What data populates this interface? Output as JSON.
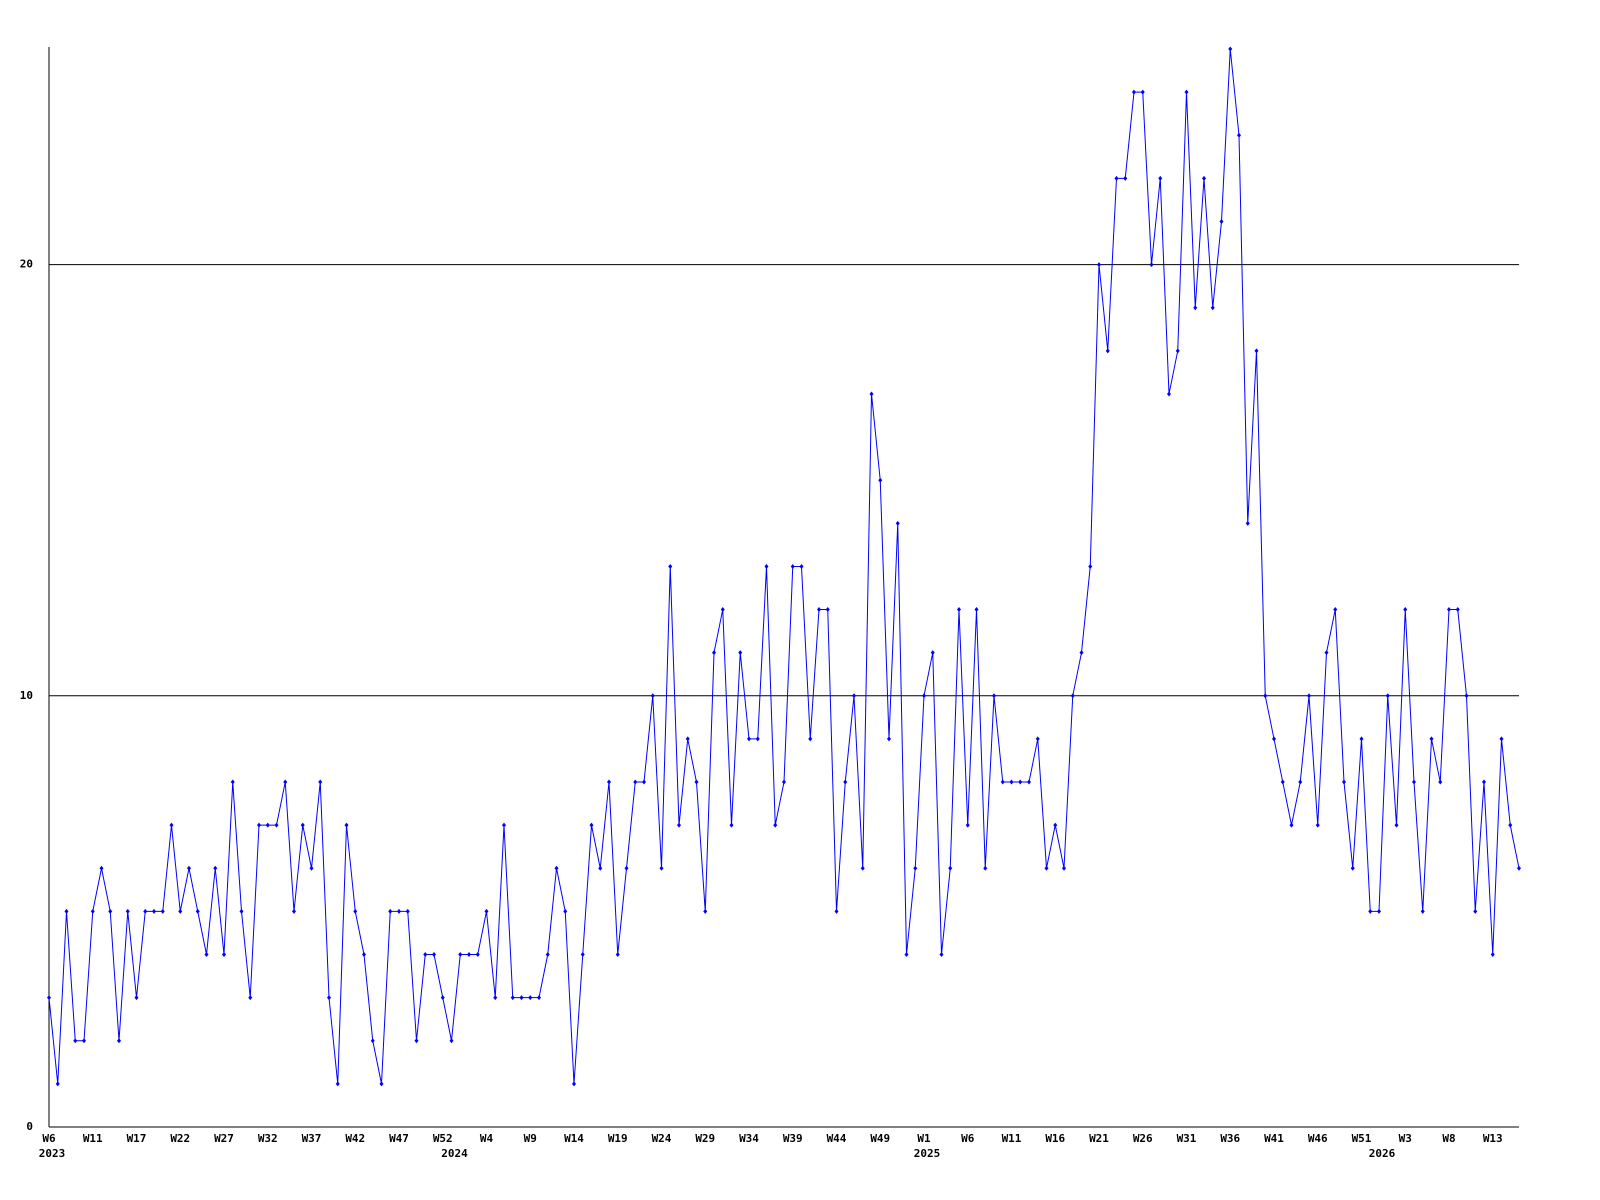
{
  "chart_data": {
    "type": "line",
    "categories": [
      "W6",
      null,
      null,
      null,
      null,
      "W11",
      null,
      null,
      null,
      null,
      "W17",
      null,
      null,
      null,
      null,
      "W22",
      null,
      null,
      null,
      null,
      "W27",
      null,
      null,
      null,
      null,
      "W32",
      null,
      null,
      null,
      null,
      "W37",
      null,
      null,
      null,
      null,
      "W42",
      null,
      null,
      null,
      null,
      "W47",
      null,
      null,
      null,
      null,
      "W52",
      null,
      null,
      null,
      null,
      "W4",
      null,
      null,
      null,
      null,
      "W9",
      null,
      null,
      null,
      null,
      "W14",
      null,
      null,
      null,
      null,
      "W19",
      null,
      null,
      null,
      null,
      "W24",
      null,
      null,
      null,
      null,
      "W29",
      null,
      null,
      null,
      null,
      "W34",
      null,
      null,
      null,
      null,
      "W39",
      null,
      null,
      null,
      null,
      "W44",
      null,
      null,
      null,
      null,
      "W49",
      null,
      null,
      null,
      null,
      "W1",
      null,
      null,
      null,
      null,
      "W6",
      null,
      null,
      null,
      null,
      "W11",
      null,
      null,
      null,
      null,
      "W16",
      null,
      null,
      null,
      null,
      "W21",
      null,
      null,
      null,
      null,
      "W26",
      null,
      null,
      null,
      null,
      "W31",
      null,
      null,
      null,
      null,
      "W36",
      null,
      null,
      null,
      null,
      "W41",
      null,
      null,
      null,
      null,
      "W46",
      null,
      null,
      null,
      null,
      "W51",
      null,
      null,
      null,
      null,
      "W3",
      null,
      null,
      null,
      null,
      "W8",
      null,
      null,
      null,
      null,
      "W13",
      null,
      null,
      null
    ],
    "year_labels": [
      "2023",
      null,
      null,
      null,
      null,
      null,
      null,
      null,
      null,
      null,
      null,
      null,
      null,
      null,
      null,
      null,
      null,
      null,
      null,
      null,
      null,
      null,
      null,
      null,
      null,
      null,
      null,
      null,
      null,
      null,
      null,
      null,
      null,
      null,
      null,
      null,
      null,
      null,
      null,
      null,
      null,
      null,
      null,
      null,
      null,
      null,
      "2024",
      null,
      null,
      null,
      null,
      null,
      null,
      null,
      null,
      null,
      null,
      null,
      null,
      null,
      null,
      null,
      null,
      null,
      null,
      null,
      null,
      null,
      null,
      null,
      null,
      null,
      null,
      null,
      null,
      null,
      null,
      null,
      null,
      null,
      null,
      null,
      null,
      null,
      null,
      null,
      null,
      null,
      null,
      null,
      null,
      null,
      null,
      null,
      null,
      null,
      null,
      null,
      null,
      null,
      "2025",
      null,
      null,
      null,
      null,
      null,
      null,
      null,
      null,
      null,
      null,
      null,
      null,
      null,
      null,
      null,
      null,
      null,
      null,
      null,
      null,
      null,
      null,
      null,
      null,
      null,
      null,
      null,
      null,
      null,
      null,
      null,
      null,
      null,
      null,
      null,
      null,
      null,
      null,
      null,
      null,
      null,
      null,
      null,
      null,
      null,
      null,
      null,
      null,
      null,
      null,
      null,
      "2026",
      null,
      null,
      null,
      null,
      null,
      null,
      null,
      null,
      null,
      null,
      null,
      null,
      null,
      null,
      null,
      null
    ],
    "series": [
      {
        "color": "#0000ff",
        "values": [
          3,
          1,
          5,
          2,
          2,
          5,
          6,
          5,
          2,
          5,
          3,
          5,
          5,
          5,
          7,
          5,
          6,
          5,
          4,
          6,
          4,
          8,
          5,
          3,
          7,
          7,
          7,
          8,
          5,
          7,
          6,
          8,
          3,
          1,
          7,
          5,
          4,
          2,
          1,
          5,
          5,
          5,
          2,
          4,
          4,
          3,
          2,
          4,
          4,
          4,
          5,
          3,
          7,
          3,
          3,
          3,
          3,
          4,
          6,
          5,
          1,
          4,
          7,
          6,
          8,
          4,
          6,
          8,
          8,
          10,
          6,
          13,
          7,
          9,
          8,
          5,
          11,
          12,
          7,
          11,
          9,
          9,
          13,
          7,
          8,
          13,
          13,
          9,
          12,
          12,
          5,
          8,
          10,
          6,
          17,
          15,
          9,
          14,
          4,
          6,
          10,
          11,
          4,
          6,
          12,
          7,
          12,
          6,
          10,
          8,
          8,
          8,
          8,
          9,
          6,
          7,
          6,
          10,
          11,
          13,
          20,
          18,
          22,
          22,
          24,
          24,
          20,
          22,
          17,
          18,
          24,
          19,
          22,
          19,
          21,
          25,
          23,
          14,
          18,
          10,
          9,
          8,
          7,
          8,
          10,
          7,
          11,
          12,
          8,
          6,
          9,
          5,
          5,
          10,
          7,
          12,
          8,
          5,
          9,
          8,
          12,
          12,
          10,
          5,
          8,
          4,
          9,
          7,
          6
        ]
      }
    ],
    "ylim": [
      0,
      25
    ],
    "yticks": [
      0,
      10,
      20
    ],
    "grid": true
  }
}
